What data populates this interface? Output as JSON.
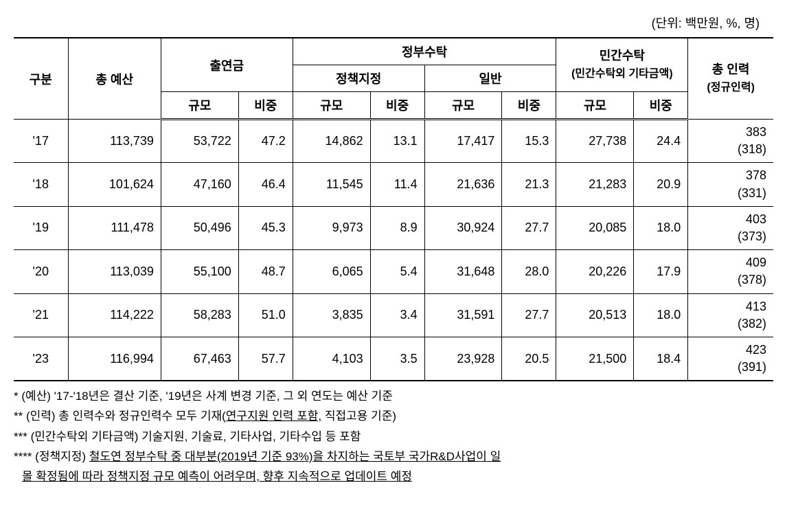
{
  "unit_label": "(단위: 백만원, %, 명)",
  "headers": {
    "gubun": "구분",
    "total_budget": "총 예산",
    "contribution": "출연금",
    "gov_consign": "정부수탁",
    "policy_assign": "정책지정",
    "general": "일반",
    "private_consign": "민간수탁",
    "private_consign_sub": "(민간수탁외 기타금액)",
    "total_people": "총 인력",
    "total_people_sub": "(정규인력)",
    "scale": "규모",
    "ratio": "비중"
  },
  "rows": [
    {
      "year": "'17",
      "total_budget": "113,739",
      "contrib_scale": "53,722",
      "contrib_ratio": "47.2",
      "policy_scale": "14,862",
      "policy_ratio": "13.1",
      "general_scale": "17,417",
      "general_ratio": "15.3",
      "private_scale": "27,738",
      "private_ratio": "24.4",
      "people_total": "383",
      "people_regular": "(318)"
    },
    {
      "year": "'18",
      "total_budget": "101,624",
      "contrib_scale": "47,160",
      "contrib_ratio": "46.4",
      "policy_scale": "11,545",
      "policy_ratio": "11.4",
      "general_scale": "21,636",
      "general_ratio": "21.3",
      "private_scale": "21,283",
      "private_ratio": "20.9",
      "people_total": "378",
      "people_regular": "(331)"
    },
    {
      "year": "'19",
      "total_budget": "111,478",
      "contrib_scale": "50,496",
      "contrib_ratio": "45.3",
      "policy_scale": "9,973",
      "policy_ratio": "8.9",
      "general_scale": "30,924",
      "general_ratio": "27.7",
      "private_scale": "20,085",
      "private_ratio": "18.0",
      "people_total": "403",
      "people_regular": "(373)"
    },
    {
      "year": "'20",
      "total_budget": "113,039",
      "contrib_scale": "55,100",
      "contrib_ratio": "48.7",
      "policy_scale": "6,065",
      "policy_ratio": "5.4",
      "general_scale": "31,648",
      "general_ratio": "28.0",
      "private_scale": "20,226",
      "private_ratio": "17.9",
      "people_total": "409",
      "people_regular": "(378)"
    },
    {
      "year": "'21",
      "total_budget": "114,222",
      "contrib_scale": "58,283",
      "contrib_ratio": "51.0",
      "policy_scale": "3,835",
      "policy_ratio": "3.4",
      "general_scale": "31,591",
      "general_ratio": "27.7",
      "private_scale": "20,513",
      "private_ratio": "18.0",
      "people_total": "413",
      "people_regular": "(382)"
    },
    {
      "year": "'23",
      "total_budget": "116,994",
      "contrib_scale": "67,463",
      "contrib_ratio": "57.7",
      "policy_scale": "4,103",
      "policy_ratio": "3.5",
      "general_scale": "23,928",
      "general_ratio": "20.5",
      "private_scale": "21,500",
      "private_ratio": "18.4",
      "people_total": "423",
      "people_regular": "(391)"
    }
  ],
  "footnotes": {
    "f1": "* (예산) '17-'18년은 결산 기준, '19년은 사계 변경 기준, 그 외 연도는 예산 기준",
    "f2_prefix": "** (인력) 총 인력수와 정규인력수 모두 기재(",
    "f2_underline": "연구지원 인력 포함,",
    "f2_suffix": " 직접고용 기준)",
    "f3": "*** (민간수탁외 기타금액) 기술지원, 기술료, 기타사업, 기타수입 등 포함",
    "f4_prefix": "**** (정책지정) ",
    "f4_underline1": "철도연 정부수탁 중 대부분(2019년 기준 93%)을 차지하는 국토부 국가R&D사업이 일",
    "f4_underline2": "몰 확정됨에 따라 정책지정 규모 예측이 어려우며, 향후 지속적으로 업데이트 예정"
  },
  "style": {
    "background_color": "#ffffff",
    "border_color": "#000000",
    "font_family": "Malgun Gothic",
    "base_fontsize": 18,
    "sub_fontsize": 16,
    "footnote_fontsize": 17,
    "column_widths": {
      "gubun": 70,
      "total_budget": 120,
      "scale": 100,
      "ratio": 70,
      "total_people": 110
    }
  }
}
